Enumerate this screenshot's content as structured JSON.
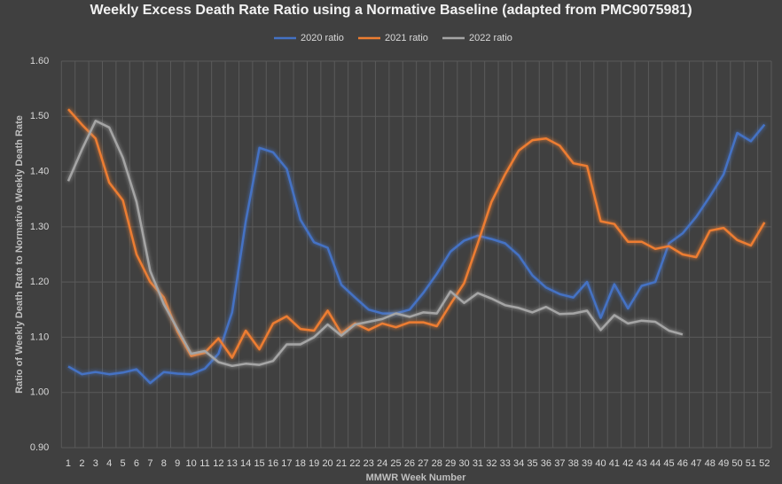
{
  "chart_data": {
    "type": "line",
    "title": "Weekly Excess Death Rate Ratio using a Normative Baseline (adapted from PMC9075981)",
    "x_label": "MMWR Week Number",
    "y_label": "Ratio of Weekly Death Rate to Normative Weekly Death Rate",
    "categories": [
      1,
      2,
      3,
      4,
      5,
      6,
      7,
      8,
      9,
      10,
      11,
      12,
      13,
      14,
      15,
      16,
      17,
      18,
      19,
      20,
      21,
      22,
      23,
      24,
      25,
      26,
      27,
      28,
      29,
      30,
      31,
      32,
      33,
      34,
      35,
      36,
      37,
      38,
      39,
      40,
      41,
      42,
      43,
      44,
      45,
      46,
      47,
      48,
      49,
      50,
      51,
      52
    ],
    "series": [
      {
        "name": "2020 ratio",
        "color": "#4472c4",
        "values": [
          1.047,
          1.033,
          1.037,
          1.033,
          1.036,
          1.042,
          1.017,
          1.037,
          1.034,
          1.033,
          1.043,
          1.07,
          1.145,
          1.31,
          1.443,
          1.435,
          1.405,
          1.313,
          1.272,
          1.262,
          1.195,
          1.172,
          1.15,
          1.143,
          1.143,
          1.15,
          1.18,
          1.215,
          1.255,
          1.275,
          1.284,
          1.278,
          1.27,
          1.248,
          1.212,
          1.19,
          1.178,
          1.172,
          1.2,
          1.135,
          1.196,
          1.152,
          1.193,
          1.2,
          1.27,
          1.288,
          1.318,
          1.355,
          1.395,
          1.47,
          1.455,
          1.485
        ]
      },
      {
        "name": "2021 ratio",
        "color": "#ed7d31",
        "values": [
          1.513,
          1.485,
          1.46,
          1.38,
          1.348,
          1.25,
          1.2,
          1.172,
          1.11,
          1.066,
          1.072,
          1.098,
          1.063,
          1.112,
          1.078,
          1.125,
          1.138,
          1.115,
          1.112,
          1.148,
          1.107,
          1.125,
          1.113,
          1.125,
          1.118,
          1.127,
          1.127,
          1.12,
          1.16,
          1.198,
          1.27,
          1.345,
          1.395,
          1.438,
          1.457,
          1.46,
          1.447,
          1.415,
          1.41,
          1.31,
          1.305,
          1.273,
          1.273,
          1.26,
          1.265,
          1.25,
          1.245,
          1.293,
          1.298,
          1.276,
          1.266,
          1.308
        ]
      },
      {
        "name": "2022 ratio",
        "color": "#a5a5a5",
        "values": [
          1.383,
          1.44,
          1.492,
          1.48,
          1.425,
          1.345,
          1.22,
          1.16,
          1.115,
          1.07,
          1.075,
          1.055,
          1.048,
          1.052,
          1.05,
          1.057,
          1.087,
          1.087,
          1.1,
          1.123,
          1.103,
          1.123,
          1.128,
          1.133,
          1.143,
          1.137,
          1.145,
          1.143,
          1.183,
          1.162,
          1.18,
          1.17,
          1.158,
          1.153,
          1.145,
          1.155,
          1.142,
          1.143,
          1.148,
          1.113,
          1.14,
          1.125,
          1.13,
          1.128,
          1.112,
          1.105,
          null,
          null,
          null,
          null,
          null,
          null
        ]
      }
    ],
    "ylim": [
      0.9,
      1.6
    ],
    "yticks": [
      {
        "value": 0.9,
        "label": "0.90"
      },
      {
        "value": 1.0,
        "label": "1.00"
      },
      {
        "value": 1.1,
        "label": "1.10"
      },
      {
        "value": 1.2,
        "label": "1.20"
      },
      {
        "value": 1.3,
        "label": "1.30"
      },
      {
        "value": 1.4,
        "label": "1.40"
      },
      {
        "value": 1.5,
        "label": "1.50"
      },
      {
        "value": 1.6,
        "label": "1.60"
      }
    ],
    "grid": true,
    "legend": "top"
  }
}
